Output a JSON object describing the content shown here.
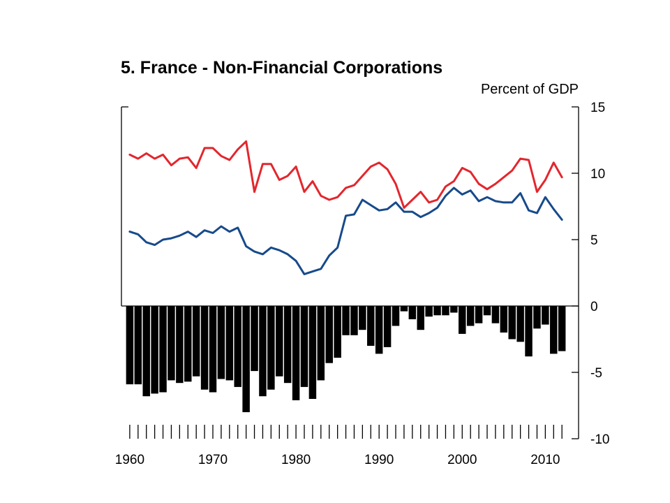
{
  "chart_data": {
    "type": "line+bar",
    "title": "5. France - Non-Financial Corporations",
    "unit_label": "Percent of GDP",
    "xlim": [
      1959,
      2014
    ],
    "ylim": [
      -10,
      15
    ],
    "x_ticks": [
      1960,
      1970,
      1980,
      1990,
      2000,
      2010
    ],
    "y_ticks": [
      15,
      10,
      5,
      0,
      -5,
      -10
    ],
    "y_axis_side": "right",
    "grid": false,
    "legend": "none",
    "x": [
      1960,
      1961,
      1962,
      1963,
      1964,
      1965,
      1966,
      1967,
      1968,
      1969,
      1970,
      1971,
      1972,
      1973,
      1974,
      1975,
      1976,
      1977,
      1978,
      1979,
      1980,
      1981,
      1982,
      1983,
      1984,
      1985,
      1986,
      1987,
      1988,
      1989,
      1990,
      1991,
      1992,
      1993,
      1994,
      1995,
      1996,
      1997,
      1998,
      1999,
      2000,
      2001,
      2002,
      2003,
      2004,
      2005,
      2006,
      2007,
      2008,
      2009,
      2010,
      2011,
      2012
    ],
    "series": [
      {
        "color": "#e3262d",
        "kind": "line",
        "values": [
          11.4,
          11.1,
          11.5,
          11.1,
          11.4,
          10.6,
          11.1,
          11.2,
          10.4,
          11.9,
          11.9,
          11.3,
          11.0,
          11.8,
          12.4,
          8.6,
          10.7,
          10.7,
          9.5,
          9.8,
          10.5,
          8.6,
          9.4,
          8.3,
          8.0,
          8.2,
          8.9,
          9.1,
          9.8,
          10.5,
          10.8,
          10.3,
          9.2,
          7.4,
          8.0,
          8.6,
          7.8,
          8.0,
          9.0,
          9.4,
          10.4,
          10.1,
          9.2,
          8.8,
          9.2,
          9.7,
          10.2,
          11.1,
          11.0,
          8.6,
          9.5,
          10.8,
          9.7
        ]
      },
      {
        "color": "#174a8b",
        "kind": "line",
        "values": [
          5.6,
          5.4,
          4.8,
          4.6,
          5.0,
          5.1,
          5.3,
          5.6,
          5.2,
          5.7,
          5.5,
          6.0,
          5.6,
          5.9,
          4.5,
          4.1,
          3.9,
          4.4,
          4.2,
          3.9,
          3.4,
          2.4,
          2.6,
          2.8,
          3.8,
          4.4,
          6.8,
          6.9,
          8.0,
          7.6,
          7.2,
          7.3,
          7.8,
          7.1,
          7.1,
          6.7,
          7.0,
          7.4,
          8.3,
          8.9,
          8.4,
          8.7,
          7.9,
          8.2,
          7.9,
          7.8,
          7.8,
          8.5,
          7.2,
          7.0,
          8.2,
          7.3,
          6.5
        ]
      },
      {
        "color": "#000000",
        "kind": "bar",
        "values": [
          -5.9,
          -5.9,
          -6.8,
          -6.6,
          -6.5,
          -5.6,
          -5.8,
          -5.7,
          -5.3,
          -6.3,
          -6.5,
          -5.5,
          -5.6,
          -6.1,
          -8.0,
          -4.9,
          -6.8,
          -6.3,
          -5.3,
          -5.8,
          -7.1,
          -6.1,
          -7.0,
          -5.6,
          -4.3,
          -3.9,
          -2.2,
          -2.2,
          -1.8,
          -3.0,
          -3.6,
          -3.1,
          -1.5,
          -0.4,
          -1.0,
          -1.8,
          -0.8,
          -0.7,
          -0.7,
          -0.5,
          -2.1,
          -1.5,
          -1.3,
          -0.7,
          -1.3,
          -2.0,
          -2.5,
          -2.7,
          -3.8,
          -1.7,
          -1.4,
          -3.6,
          -3.4
        ]
      }
    ]
  }
}
